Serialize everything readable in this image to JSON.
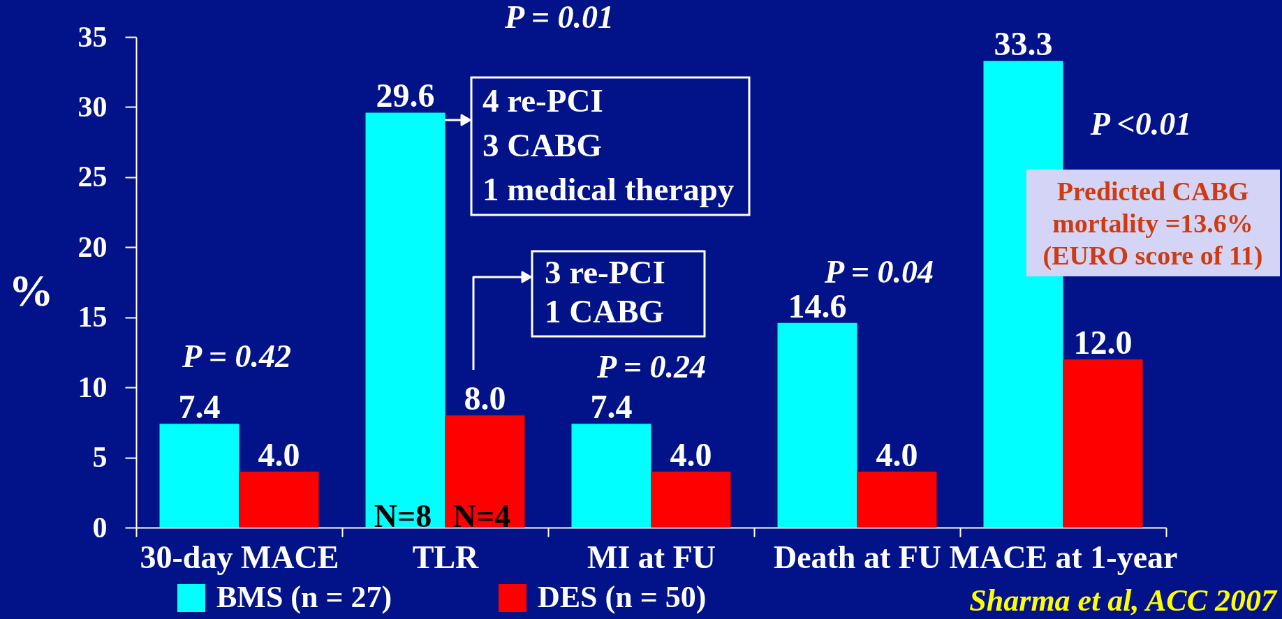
{
  "chart_data": {
    "type": "bar",
    "ylabel": "%",
    "categories": [
      "30-day MACE",
      "TLR",
      "MI at FU",
      "Death at FU",
      "MACE at 1-year"
    ],
    "series": [
      {
        "name": "BMS (n = 27)",
        "color": "#00ffff",
        "values": [
          7.4,
          29.6,
          7.4,
          14.6,
          33.3
        ],
        "value_labels": [
          "7.4",
          "29.6",
          "7.4",
          "14.6",
          "33.3"
        ]
      },
      {
        "name": "DES (n = 50)",
        "color": "#ff0000",
        "values": [
          4.0,
          8.0,
          4.0,
          4.0,
          12.0
        ],
        "value_labels": [
          "4.0",
          "8.0",
          "4.0",
          "4.0",
          "12.0"
        ]
      }
    ],
    "ylim": [
      0,
      35
    ],
    "yticks": [
      0,
      5,
      10,
      15,
      20,
      25,
      30,
      35
    ],
    "legend": "bottom",
    "annotations": [
      "P = 0.01",
      "4 re-PCI\n3 CABG\n1 medical therapy",
      "3 re-PCI\n1 CABG",
      "P = 0.42",
      "P = 0.24",
      "P = 0.04",
      "P <0.01",
      "Predicted CABG\nmortality =13.6%\n(EURO score of 11)",
      "N=8",
      "N=4",
      "Sharma et al, ACC 2007"
    ]
  }
}
